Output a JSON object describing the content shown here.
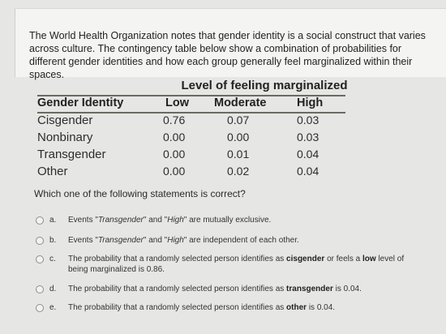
{
  "intro_text": "The World Health Organization notes that gender identity is a social construct that varies across culture. The contingency table below show a combination of probabilities for different gender identities and how each group generally feel marginalized within their spaces.",
  "table": {
    "group_header": "Level of feeling marginalized",
    "row_header": "Gender Identity",
    "columns": [
      "Low",
      "Moderate",
      "High"
    ],
    "rows": [
      {
        "label": "Cisgender",
        "values": [
          "0.76",
          "0.07",
          "0.03"
        ]
      },
      {
        "label": "Nonbinary",
        "values": [
          "0.00",
          "0.00",
          "0.03"
        ]
      },
      {
        "label": "Transgender",
        "values": [
          "0.00",
          "0.01",
          "0.04"
        ]
      },
      {
        "label": "Other",
        "values": [
          "0.00",
          "0.02",
          "0.04"
        ]
      }
    ]
  },
  "question": "Which one of the following statements is correct?",
  "options": [
    {
      "letter": "a.",
      "pre": "Events \"",
      "t1": "Transgender",
      "mid": "\" and \"",
      "t2": "High",
      "post": "\" are mutually exclusive."
    },
    {
      "letter": "b.",
      "pre": "Events \"",
      "t1": "Transgender",
      "mid": "\" and \"",
      "t2": "High",
      "post": "\" are independent of each other."
    },
    {
      "letter": "c.",
      "pre": "The probability that a randomly selected person identifies as ",
      "b1": "cisgender",
      "mid": " or feels a ",
      "b2": "low",
      "post": " level of being marginalized is 0.86."
    },
    {
      "letter": "d.",
      "pre": "The probability that a randomly selected person identifies as ",
      "b1": "transgender",
      "post": " is 0.04."
    },
    {
      "letter": "e.",
      "pre": "The probability that a randomly selected person identifies as ",
      "b1": "other",
      "post": " is 0.04."
    }
  ]
}
